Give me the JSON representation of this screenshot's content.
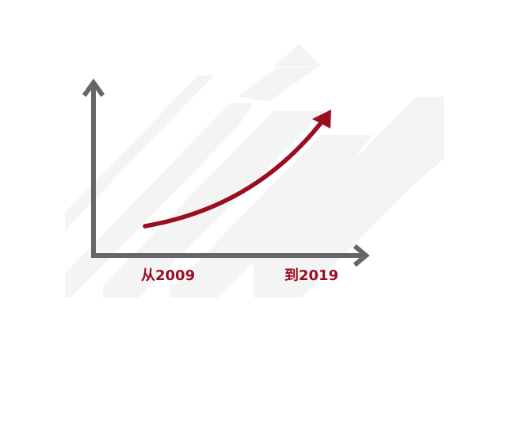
{
  "labels": {
    "start": "从2009",
    "end": "到2019"
  },
  "colors": {
    "axis": "#666666",
    "trend": "#9b0d1f",
    "label": "#9b0d1f",
    "watermark": "#f4f4f4"
  },
  "icons": {
    "x_axis": "arrow-right-icon",
    "y_axis": "arrow-up-icon",
    "trend": "curved-arrow-up-icon"
  }
}
